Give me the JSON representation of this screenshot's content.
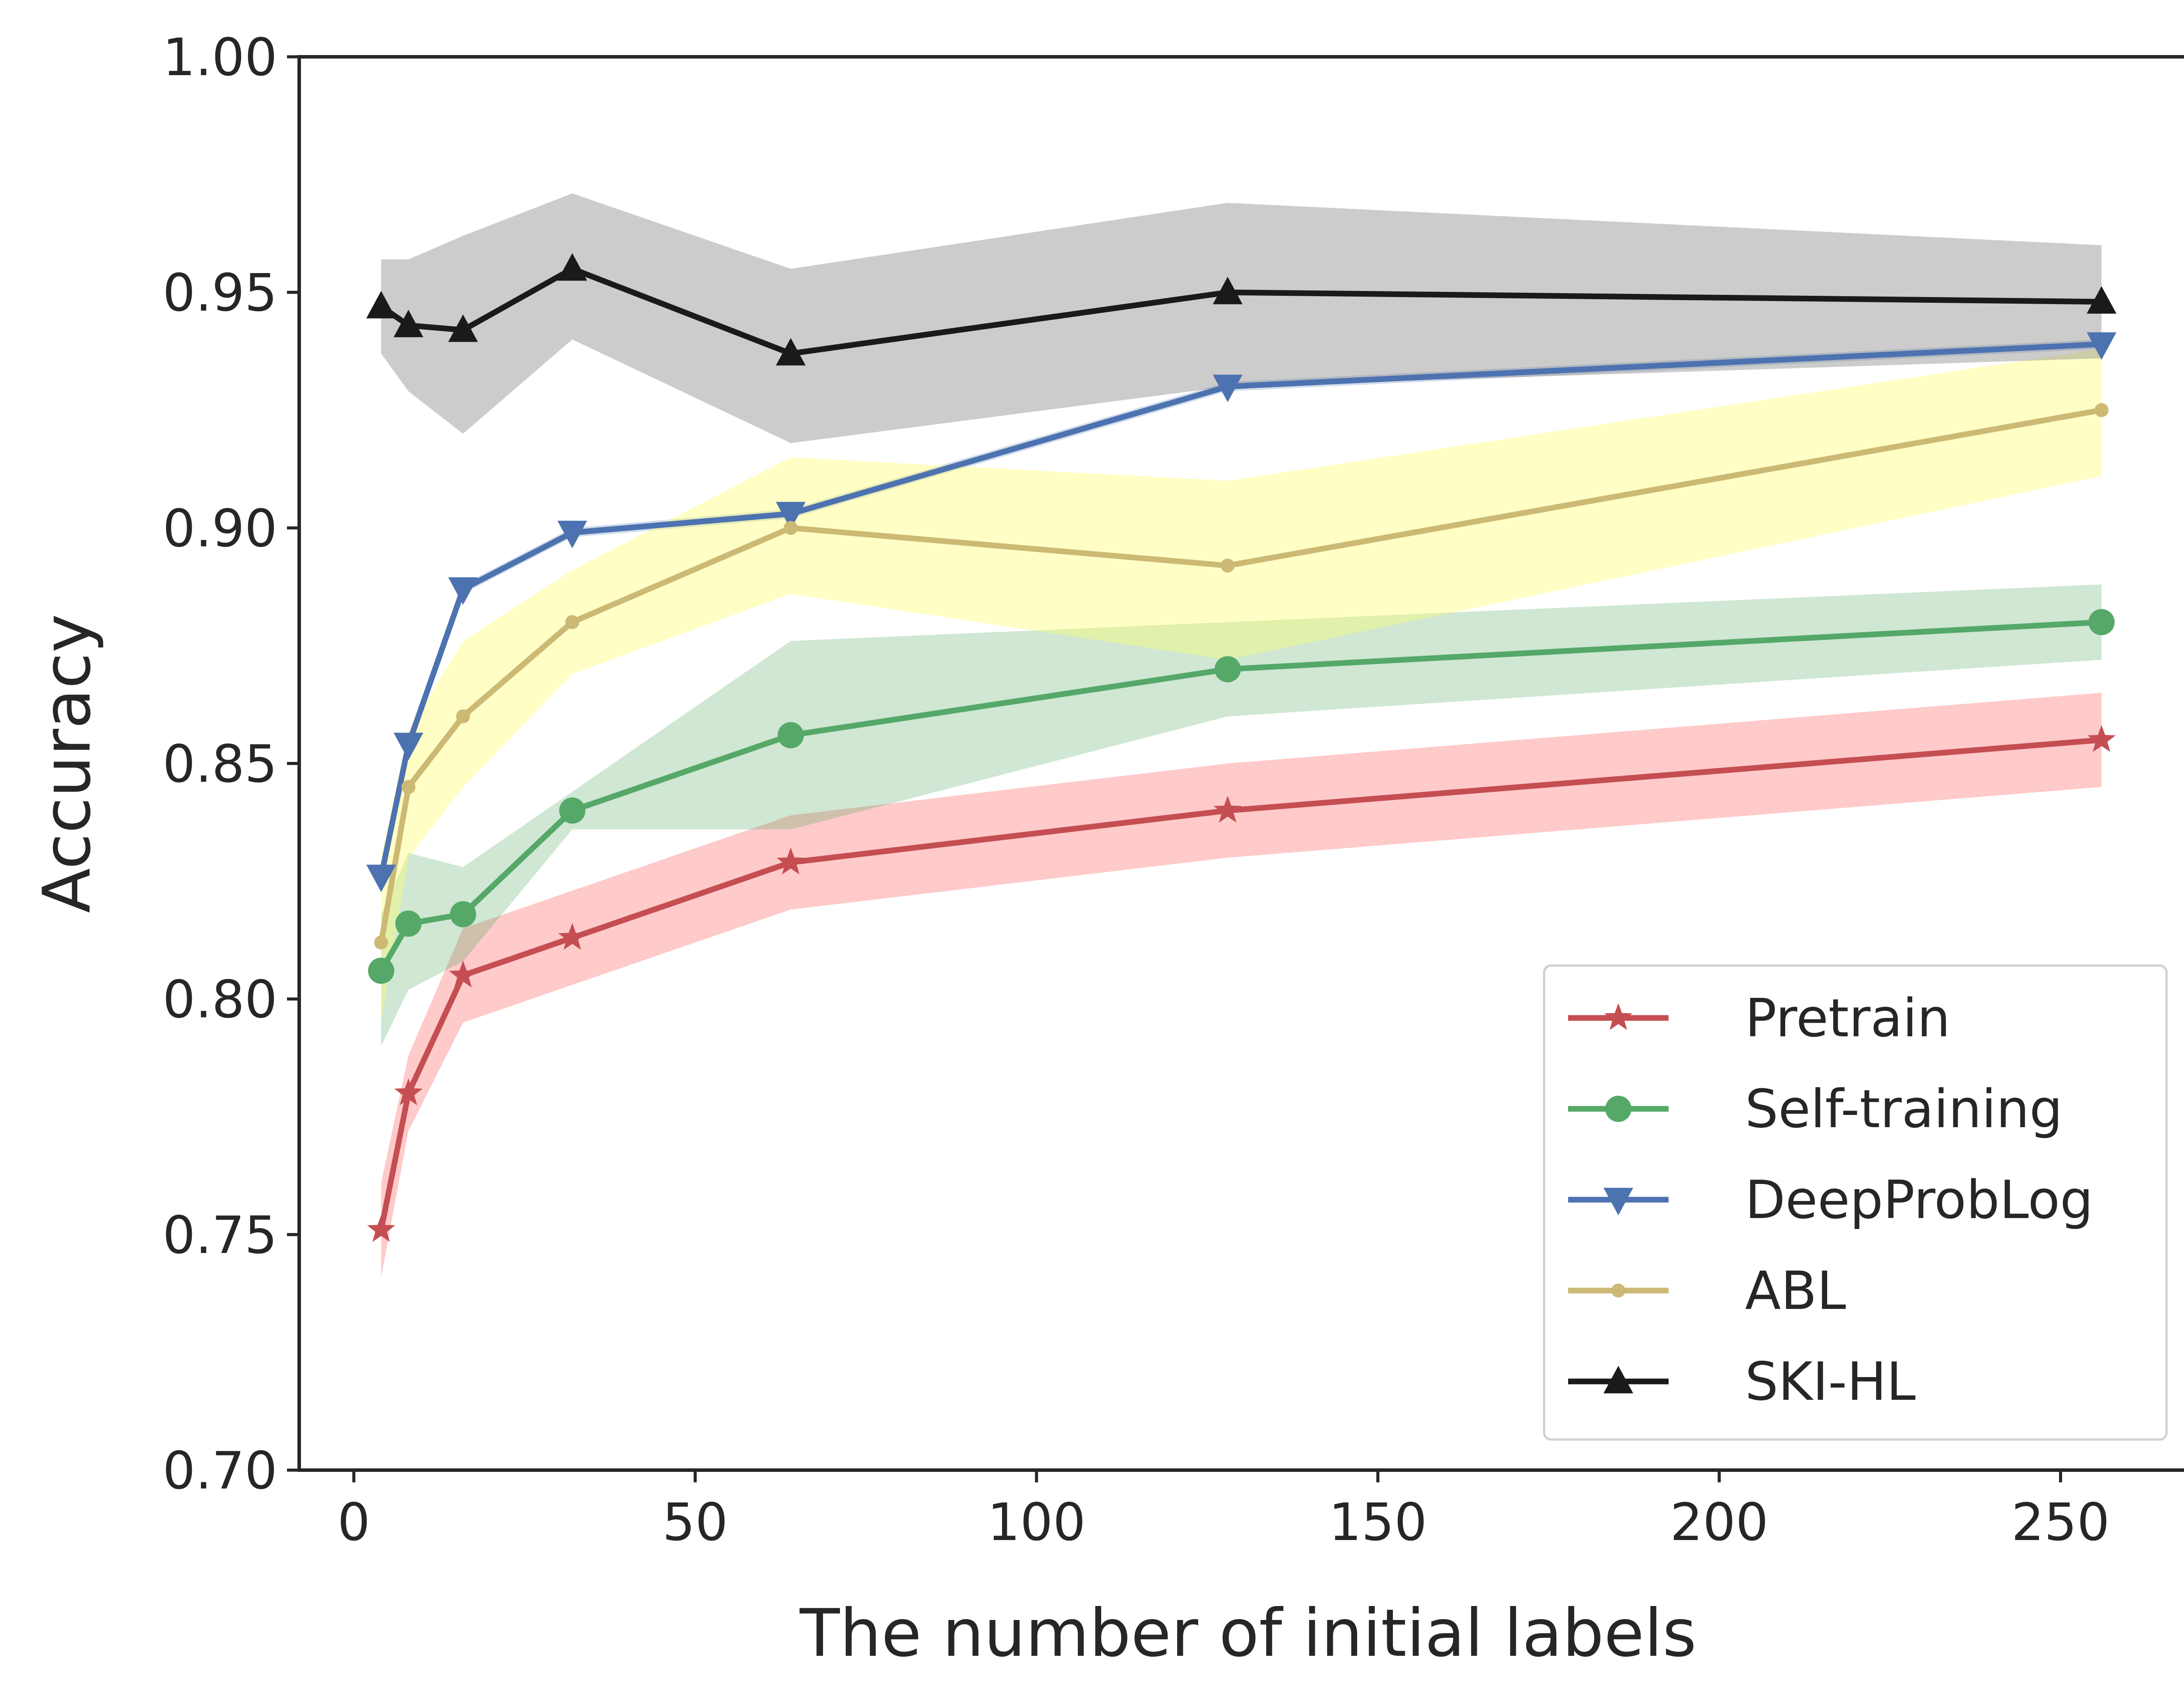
{
  "chart_data": {
    "type": "line",
    "title": "",
    "xlabel": "The number of initial labels",
    "ylabel": "Accuracy",
    "xlim": [
      -8,
      270
    ],
    "ylim": [
      0.7,
      1.0
    ],
    "xticks": [
      0,
      50,
      100,
      150,
      200,
      250
    ],
    "xtick_labels": [
      "0",
      "50",
      "100",
      "150",
      "200",
      "250"
    ],
    "yticks": [
      0.7,
      0.75,
      0.8,
      0.85,
      0.9,
      0.95,
      1.0
    ],
    "ytick_labels": [
      "0.70",
      "0.75",
      "0.80",
      "0.85",
      "0.90",
      "0.95",
      "1.00"
    ],
    "grid": false,
    "legend_position": "lower-right",
    "x": [
      4,
      8,
      16,
      32,
      64,
      128,
      256
    ],
    "series": [
      {
        "name": "Pretrain",
        "color": "#c44e52",
        "marker": "star",
        "values": [
          0.751,
          0.78,
          0.805,
          0.813,
          0.829,
          0.84,
          0.855
        ],
        "lower": [
          0.741,
          0.772,
          0.795,
          0.803,
          0.819,
          0.83,
          0.845
        ],
        "upper": [
          0.761,
          0.788,
          0.815,
          0.823,
          0.839,
          0.85,
          0.865
        ]
      },
      {
        "name": "Self-training",
        "color": "#55a868",
        "marker": "circle",
        "values": [
          0.806,
          0.816,
          0.818,
          0.84,
          0.856,
          0.87,
          0.88
        ],
        "lower": [
          0.79,
          0.802,
          0.808,
          0.836,
          0.836,
          0.86,
          0.872
        ],
        "upper": [
          0.818,
          0.831,
          0.828,
          0.844,
          0.876,
          0.88,
          0.888
        ]
      },
      {
        "name": "DeepProbLog",
        "color": "#4c72b0",
        "marker": "triangle-down",
        "values": [
          0.826,
          0.854,
          0.887,
          0.899,
          0.903,
          0.93,
          0.939
        ],
        "lower": [
          0.825,
          0.853,
          0.886,
          0.898,
          0.902,
          0.929,
          0.938
        ],
        "upper": [
          0.827,
          0.855,
          0.888,
          0.9,
          0.904,
          0.931,
          0.94
        ]
      },
      {
        "name": "ABL",
        "color": "#ccb974",
        "marker": "dot",
        "values": [
          0.812,
          0.845,
          0.86,
          0.88,
          0.9,
          0.892,
          0.925
        ],
        "lower": [
          0.795,
          0.83,
          0.845,
          0.869,
          0.886,
          0.872,
          0.911
        ],
        "upper": [
          0.83,
          0.857,
          0.876,
          0.891,
          0.915,
          0.91,
          0.938
        ]
      },
      {
        "name": "SKI-HL",
        "color": "#1a1a1a",
        "marker": "triangle-up",
        "values": [
          0.947,
          0.943,
          0.942,
          0.955,
          0.937,
          0.95,
          0.948
        ],
        "lower": [
          0.937,
          0.929,
          0.92,
          0.94,
          0.918,
          0.93,
          0.936
        ],
        "upper": [
          0.957,
          0.957,
          0.962,
          0.971,
          0.955,
          0.969,
          0.96
        ]
      }
    ]
  }
}
